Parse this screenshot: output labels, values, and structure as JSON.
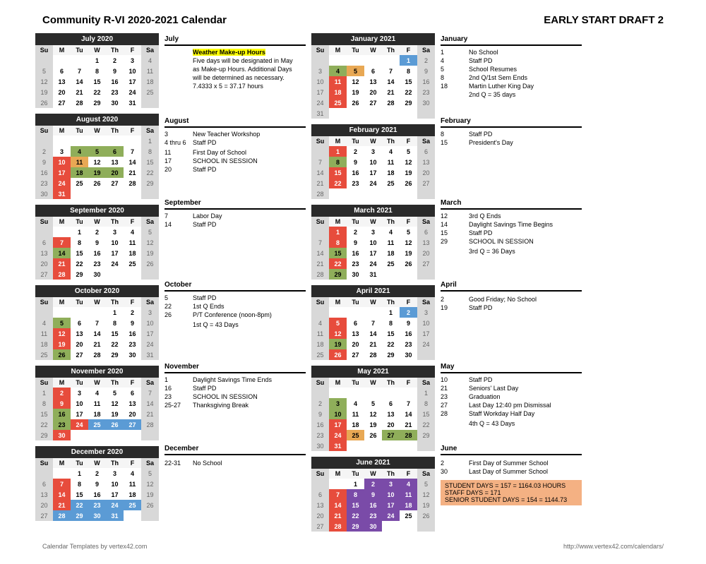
{
  "title_left": "Community R-VI 2020-2021 Calendar",
  "title_right": "EARLY START DRAFT 2",
  "footer_left": "Calendar Templates by vertex42.com",
  "footer_right": "http://www.vertex42.com/calendars/",
  "day_headers": [
    "Su",
    "M",
    "Tu",
    "W",
    "Th",
    "F",
    "Sa"
  ],
  "months_left": [
    {
      "name": "July 2020",
      "start": 3,
      "days": 31,
      "hl": {}
    },
    {
      "name": "August 2020",
      "start": 6,
      "days": 31,
      "hl": {
        "4": "green",
        "5": "green",
        "6": "green",
        "10": "red",
        "11": "orange",
        "17": "red",
        "18": "green",
        "19": "green",
        "20": "green",
        "24": "red",
        "31": "red"
      }
    },
    {
      "name": "September 2020",
      "start": 2,
      "days": 30,
      "hl": {
        "7": "red",
        "14": "green",
        "21": "red",
        "28": "red"
      }
    },
    {
      "name": "October 2020",
      "start": 4,
      "days": 31,
      "hl": {
        "5": "green",
        "12": "red",
        "19": "red",
        "26": "green"
      }
    },
    {
      "name": "November 2020",
      "start": 0,
      "days": 30,
      "hl": {
        "2": "red",
        "9": "red",
        "16": "green",
        "23": "green",
        "24": "red",
        "25": "blue",
        "26": "blue",
        "27": "blue",
        "30": "red"
      }
    },
    {
      "name": "December 2020",
      "start": 2,
      "days": 31,
      "hl": {
        "7": "red",
        "14": "red",
        "21": "red",
        "22": "blue",
        "23": "blue",
        "24": "blue",
        "25": "blue",
        "28": "blue",
        "29": "blue",
        "30": "blue",
        "31": "blue"
      }
    }
  ],
  "months_right": [
    {
      "name": "January 2021",
      "start": 5,
      "days": 31,
      "hl": {
        "1": "blue",
        "4": "green",
        "5": "orange",
        "11": "red",
        "18": "red",
        "25": "red"
      }
    },
    {
      "name": "February 2021",
      "start": 1,
      "days": 28,
      "hl": {
        "1": "red",
        "8": "green",
        "15": "red",
        "22": "red"
      }
    },
    {
      "name": "March 2021",
      "start": 1,
      "days": 31,
      "hl": {
        "1": "red",
        "8": "red",
        "15": "green",
        "22": "red",
        "29": "green"
      }
    },
    {
      "name": "April 2021",
      "start": 4,
      "days": 30,
      "hl": {
        "2": "blue",
        "5": "red",
        "12": "red",
        "19": "green",
        "26": "red"
      }
    },
    {
      "name": "May 2021",
      "start": 6,
      "days": 31,
      "hl": {
        "3": "green",
        "10": "green",
        "17": "red",
        "24": "red",
        "25": "orange",
        "27": "green",
        "28": "green",
        "31": "red"
      }
    },
    {
      "name": "June 2021",
      "start": 2,
      "days": 30,
      "hl": {
        "2": "purple",
        "3": "purple",
        "4": "purple",
        "7": "red",
        "8": "purple",
        "9": "purple",
        "10": "purple",
        "11": "purple",
        "14": "red",
        "15": "purple",
        "16": "purple",
        "17": "purple",
        "18": "purple",
        "21": "red",
        "22": "purple",
        "23": "purple",
        "24": "purple",
        "28": "red",
        "29": "purple",
        "30": "purple"
      }
    }
  ],
  "events_left": [
    {
      "name": "July",
      "special": {
        "title": "Weather Make-up Hours",
        "lines": [
          "Five days will be designated in May",
          "as Make-up Hours. Additional Days",
          "will be determined as necessary.",
          "7.4333 x 5 = 37.17 hours"
        ]
      }
    },
    {
      "name": "August",
      "rows": [
        [
          "3",
          "New Teacher Workshop"
        ],
        [
          "4 thru 6",
          "Staff PD"
        ],
        [
          "",
          ""
        ],
        [
          "11",
          "First Day of School"
        ],
        [
          "17",
          "SCHOOL IN SESSION"
        ],
        [
          "20",
          "Staff PD"
        ]
      ]
    },
    {
      "name": "September",
      "rows": [
        [
          "7",
          "Labor Day"
        ],
        [
          "14",
          "Staff PD"
        ]
      ]
    },
    {
      "name": "October",
      "rows": [
        [
          "5",
          "Staff PD"
        ],
        [
          "22",
          "1st Q Ends"
        ],
        [
          "26",
          "P/T Conference (noon-8pm)"
        ],
        [
          "",
          ""
        ],
        [
          "",
          "1st Q =  43 Days"
        ]
      ]
    },
    {
      "name": "November",
      "rows": [
        [
          "1",
          "Daylight Savings Time Ends"
        ],
        [
          "16",
          "Staff PD"
        ],
        [
          "23",
          "SCHOOL IN SESSION"
        ],
        [
          "25-27",
          "Thanksgiving Break"
        ]
      ]
    },
    {
      "name": "December",
      "rows": [
        [
          "",
          ""
        ],
        [
          "22-31",
          "No School"
        ]
      ]
    }
  ],
  "events_right": [
    {
      "name": "January",
      "rows": [
        [
          "1",
          "No School"
        ],
        [
          "4",
          "Staff PD"
        ],
        [
          "5",
          "School Resumes"
        ],
        [
          "8",
          "2nd Q/1st Sem Ends"
        ],
        [
          "18",
          "Martin Luther King Day"
        ],
        [
          "",
          "2nd Q = 35 days"
        ]
      ]
    },
    {
      "name": "February",
      "rows": [
        [
          "8",
          "Staff PD"
        ],
        [
          "15",
          "President's Day"
        ]
      ]
    },
    {
      "name": "March",
      "rows": [
        [
          "12",
          "3rd Q Ends"
        ],
        [
          "14",
          "Daylight Savings Time Begins"
        ],
        [
          "15",
          "Staff PD"
        ],
        [
          "29",
          "SCHOOL IN SESSION"
        ],
        [
          "",
          ""
        ],
        [
          "",
          "3rd Q =  36 Days"
        ]
      ]
    },
    {
      "name": "April",
      "rows": [
        [
          "",
          ""
        ],
        [
          "2",
          "Good Friday; No School"
        ],
        [
          "19",
          "Staff PD"
        ]
      ]
    },
    {
      "name": "May",
      "rows": [
        [
          "10",
          "Staff PD"
        ],
        [
          "21",
          "Seniors' Last Day"
        ],
        [
          "23",
          "Graduation"
        ],
        [
          "27",
          "Last Day 12:40 pm Dismissal"
        ],
        [
          "28",
          "Staff Workday Half Day"
        ],
        [
          "",
          ""
        ],
        [
          "",
          "4th Q = 43 Days"
        ]
      ]
    },
    {
      "name": "June",
      "rows": [
        [
          "",
          ""
        ],
        [
          "2",
          "First Day of Summer School"
        ],
        [
          "30",
          "Last Day of Summer School"
        ]
      ],
      "summary": [
        "STUDENT DAYS = 157 = 1164.03 HOURS",
        "STAFF DAYS     =  171",
        "SENIOR STUDENT DAYS = 154 = 1144.73"
      ]
    }
  ]
}
